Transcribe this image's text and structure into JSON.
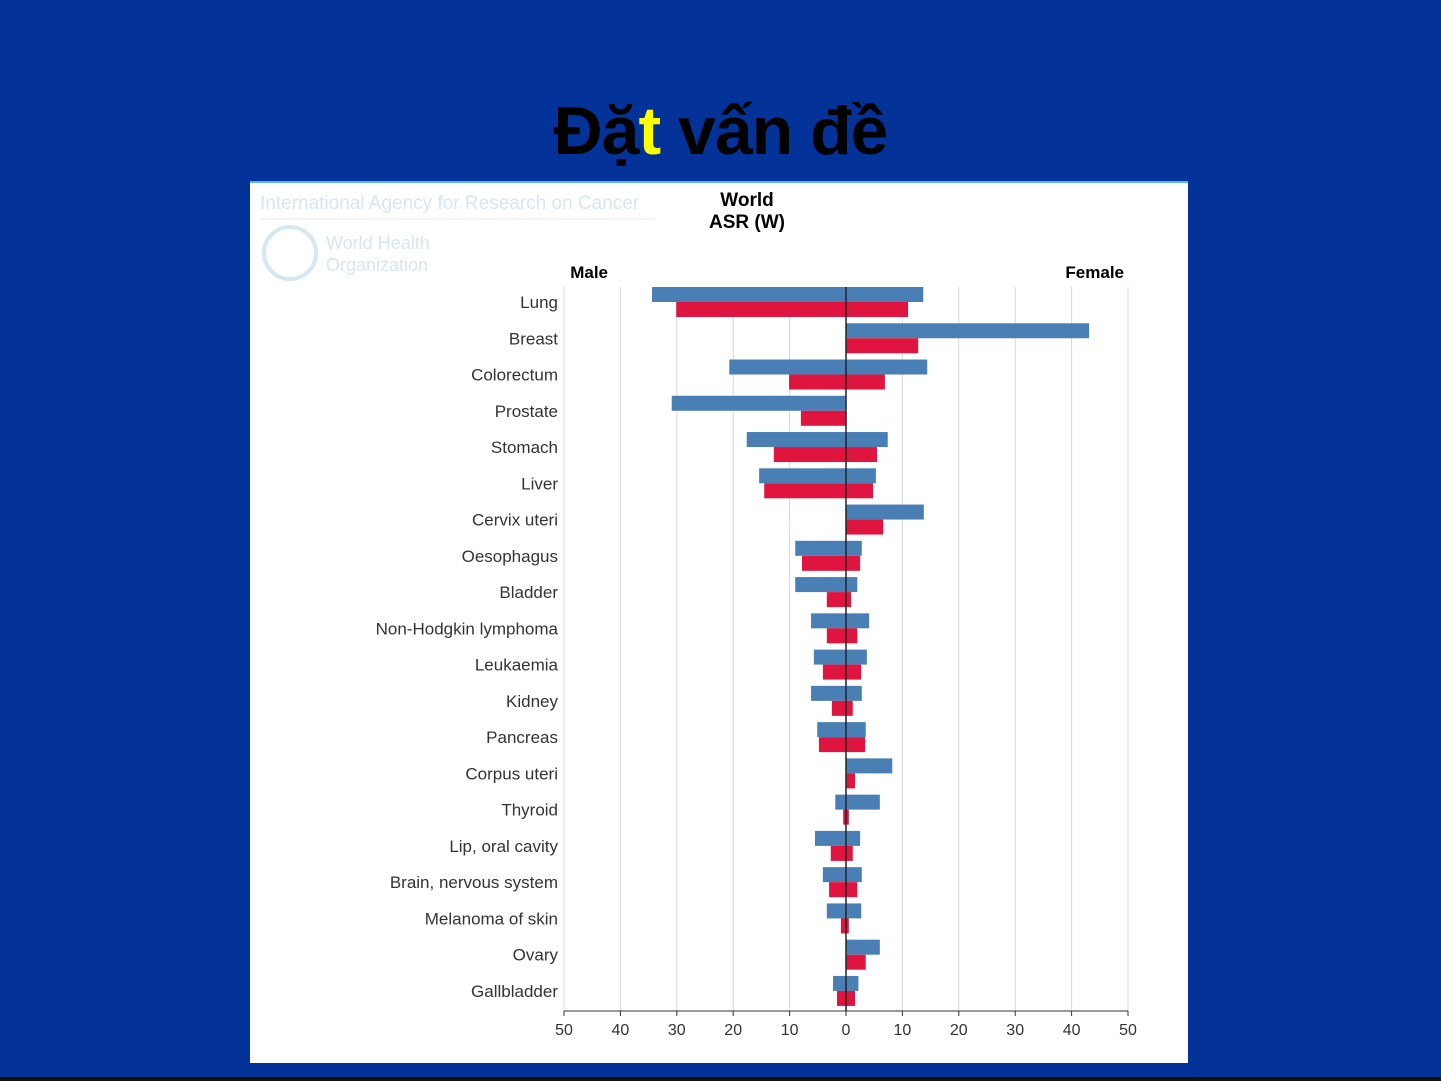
{
  "slide": {
    "title_before": "Đặ",
    "title_highlight": "t",
    "title_after": " vấn đề"
  },
  "watermark": {
    "agency": "International Agency for Research on Cancer",
    "who_line1": "World Health",
    "who_line2": "Organization"
  },
  "chart_data": {
    "type": "bar",
    "title": "World",
    "subtitle": "ASR (W)",
    "left_label": "Male",
    "right_label": "Female",
    "xlim": [
      -50,
      50
    ],
    "ticks": [
      50,
      40,
      30,
      20,
      10,
      0,
      10,
      20,
      30,
      40,
      50
    ],
    "colors": {
      "blue": "#4a7fb5",
      "red": "#e0153f"
    },
    "categories": [
      "Lung",
      "Breast",
      "Colorectum",
      "Prostate",
      "Stomach",
      "Liver",
      "Cervix uteri",
      "Oesophagus",
      "Bladder",
      "Non-Hodgkin lymphoma",
      "Leukaemia",
      "Kidney",
      "Pancreas",
      "Corpus uteri",
      "Thyroid",
      "Lip, oral cavity",
      "Brain, nervous system",
      "Melanoma of skin",
      "Ovary",
      "Gallbladder"
    ],
    "series": [
      {
        "name": "Male blue",
        "side": "male",
        "color": "blue",
        "values": [
          34.4,
          0,
          20.7,
          30.9,
          17.6,
          15.4,
          0,
          9.0,
          9.0,
          6.2,
          5.7,
          6.2,
          5.1,
          0,
          1.9,
          5.5,
          4.1,
          3.4,
          0,
          2.3
        ]
      },
      {
        "name": "Male red",
        "side": "male",
        "color": "red",
        "values": [
          30.1,
          0,
          10.1,
          8.0,
          12.8,
          14.5,
          0,
          7.8,
          3.4,
          3.4,
          4.1,
          2.5,
          4.8,
          0,
          0.5,
          2.7,
          3.0,
          0.9,
          0,
          1.6
        ]
      },
      {
        "name": "Female blue",
        "side": "female",
        "color": "blue",
        "values": [
          13.7,
          43.1,
          14.4,
          0,
          7.4,
          5.3,
          13.8,
          2.8,
          2.0,
          4.1,
          3.7,
          2.8,
          3.5,
          8.2,
          6.0,
          2.5,
          2.8,
          2.7,
          6.0,
          2.2
        ]
      },
      {
        "name": "Female red",
        "side": "female",
        "color": "red",
        "values": [
          11.0,
          12.8,
          6.9,
          0,
          5.5,
          4.8,
          6.6,
          2.5,
          0.9,
          2.0,
          2.7,
          1.2,
          3.4,
          1.6,
          0.5,
          1.2,
          2.0,
          0.5,
          3.5,
          1.6
        ]
      }
    ]
  }
}
